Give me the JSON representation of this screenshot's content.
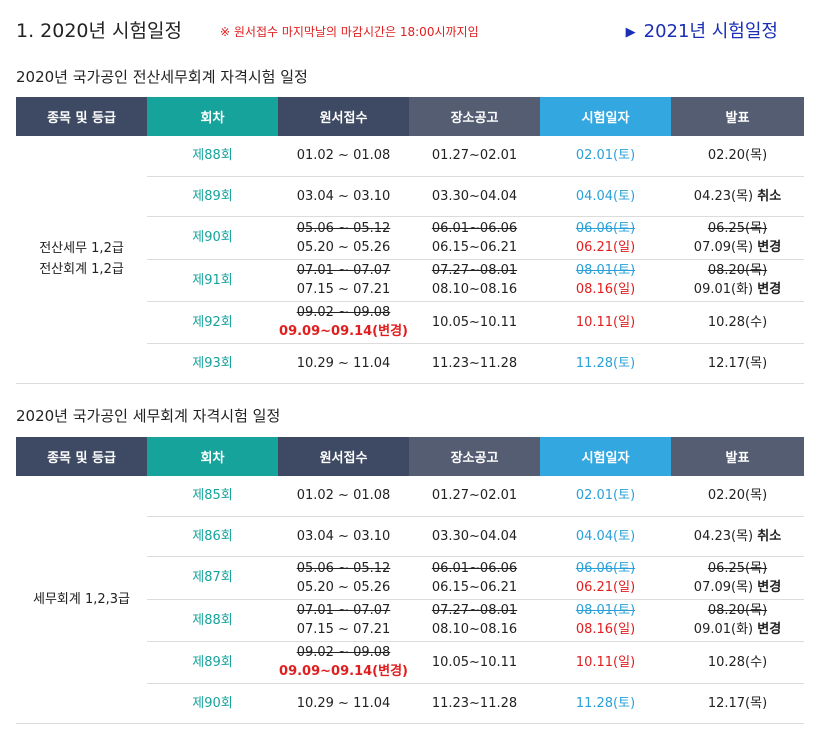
{
  "header": {
    "title": "1. 2020년 시험일정",
    "notice": "※ 원서접수 마지막날의 마감시간은 18:00시까지임",
    "next_link_icon": "triangle-right-icon",
    "next_link": "2021년 시험일정"
  },
  "columns": [
    "종목 및 등급",
    "회차",
    "원서접수",
    "장소공고",
    "시험일자",
    "발표"
  ],
  "colors": {
    "header_dark": "#3e4a63",
    "header_teal": "#16a39c",
    "header_slate": "#555d73",
    "header_blue": "#33a7e0",
    "round": "#16a39c",
    "exam_date": "#2aa0d8",
    "changed": "#e01e1e",
    "link": "#1a2fb5"
  },
  "sections": [
    {
      "title": "2020년 국가공인 전산세무회계 자격시험 일정",
      "grade": [
        "전산세무 1,2급",
        "전산회계 1,2급"
      ],
      "rows": [
        {
          "round": "제88회",
          "apply": {
            "now": "01.02 ~ 01.08"
          },
          "notice": {
            "now": "01.27~02.01"
          },
          "exam": {
            "now": "02.01(토)"
          },
          "result": {
            "now": "02.20(목)"
          }
        },
        {
          "round": "제89회",
          "apply": {
            "now": "03.04 ~ 03.10"
          },
          "notice": {
            "now": "03.30~04.04"
          },
          "exam": {
            "now": "04.04(토)"
          },
          "result": {
            "now": "04.23(목)",
            "tag": "취소"
          }
        },
        {
          "round": "제90회",
          "apply": {
            "old": "05.06 ~ 05.12",
            "now": "05.20 ~ 05.26"
          },
          "notice": {
            "old": "06.01~06.06",
            "now": "06.15~06.21"
          },
          "exam": {
            "old": "06.06(토)",
            "now": "06.21(일)"
          },
          "result": {
            "old": "06.25(목)",
            "now": "07.09(목)",
            "tag": "변경"
          }
        },
        {
          "round": "제91회",
          "apply": {
            "old": "07.01 ~ 07.07",
            "now": "07.15 ~ 07.21"
          },
          "notice": {
            "old": "07.27~08.01",
            "now": "08.10~08.16"
          },
          "exam": {
            "old": "08.01(토)",
            "now": "08.16(일)"
          },
          "result": {
            "old": "08.20(목)",
            "now": "09.01(화)",
            "tag": "변경"
          }
        },
        {
          "round": "제92회",
          "apply": {
            "old": "09.02 ~ 09.08",
            "now": "09.09~09.14(변경)"
          },
          "notice": {
            "now": "10.05~10.11"
          },
          "exam": {
            "now": "10.11(일)"
          },
          "result": {
            "now": "10.28(수)"
          }
        },
        {
          "round": "제93회",
          "apply": {
            "now": "10.29 ~ 11.04"
          },
          "notice": {
            "now": "11.23~11.28"
          },
          "exam": {
            "now": "11.28(토)"
          },
          "result": {
            "now": "12.17(목)"
          }
        }
      ]
    },
    {
      "title": "2020년 국가공인 세무회계 자격시험 일정",
      "grade": [
        "세무회계 1,2,3급"
      ],
      "rows": [
        {
          "round": "제85회",
          "apply": {
            "now": "01.02 ~ 01.08"
          },
          "notice": {
            "now": "01.27~02.01"
          },
          "exam": {
            "now": "02.01(토)"
          },
          "result": {
            "now": "02.20(목)"
          }
        },
        {
          "round": "제86회",
          "apply": {
            "now": "03.04 ~ 03.10"
          },
          "notice": {
            "now": "03.30~04.04"
          },
          "exam": {
            "now": "04.04(토)"
          },
          "result": {
            "now": "04.23(목)",
            "tag": "취소"
          }
        },
        {
          "round": "제87회",
          "apply": {
            "old": "05.06 ~ 05.12",
            "now": "05.20 ~ 05.26"
          },
          "notice": {
            "old": "06.01~06.06",
            "now": "06.15~06.21"
          },
          "exam": {
            "old": "06.06(토)",
            "now": "06.21(일)"
          },
          "result": {
            "old": "06.25(목)",
            "now": "07.09(목)",
            "tag": "변경"
          }
        },
        {
          "round": "제88회",
          "apply": {
            "old": "07.01 ~ 07.07",
            "now": "07.15 ~ 07.21"
          },
          "notice": {
            "old": "07.27~08.01",
            "now": "08.10~08.16"
          },
          "exam": {
            "old": "08.01(토)",
            "now": "08.16(일)"
          },
          "result": {
            "old": "08.20(목)",
            "now": "09.01(화)",
            "tag": "변경"
          }
        },
        {
          "round": "제89회",
          "apply": {
            "old": "09.02 ~ 09.08",
            "now": "09.09~09.14(변경)"
          },
          "notice": {
            "now": "10.05~10.11"
          },
          "exam": {
            "now": "10.11(일)"
          },
          "result": {
            "now": "10.28(수)"
          }
        },
        {
          "round": "제90회",
          "apply": {
            "now": "10.29 ~ 11.04"
          },
          "notice": {
            "now": "11.23~11.28"
          },
          "exam": {
            "now": "11.28(토)"
          },
          "result": {
            "now": "12.17(목)"
          }
        }
      ]
    }
  ]
}
